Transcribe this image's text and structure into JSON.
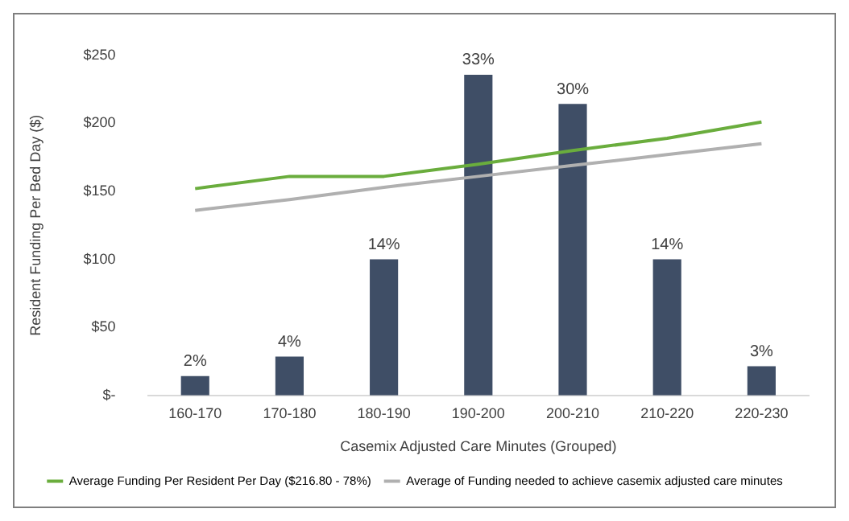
{
  "chart_data": {
    "type": "bar",
    "xlabel": "Casemix Adjusted Care Minutes (Grouped)",
    "ylabel": "Resident Funding Per Bed Day ($)",
    "categories": [
      "160-170",
      "170-180",
      "180-190",
      "190-200",
      "200-210",
      "210-220",
      "220-230"
    ],
    "series": [
      {
        "color": "#3f4e66",
        "axis": "y2",
        "values": [
          2,
          4,
          14,
          33,
          30,
          14,
          3
        ],
        "value_labels": [
          "2%",
          "4%",
          "14%",
          "33%",
          "30%",
          "14%",
          "3%"
        ]
      },
      {
        "type": "line",
        "name": "Average Funding Per Resident Per Day ($216.80 - 78%)",
        "color": "#6aad3d",
        "values": [
          152,
          161,
          161,
          170,
          180,
          189,
          201
        ]
      },
      {
        "type": "line",
        "name": "Average of Funding needed to achieve casemix adjusted care minutes",
        "color": "#b0b0b0",
        "values": [
          136,
          144,
          153,
          161,
          169,
          177,
          185
        ]
      }
    ],
    "ylim": [
      0,
      250
    ],
    "yticks": [
      {
        "value": 0,
        "label": "$-"
      },
      {
        "value": 50,
        "label": "$50"
      },
      {
        "value": 100,
        "label": "$100"
      },
      {
        "value": 150,
        "label": "$150"
      },
      {
        "value": 200,
        "label": "$200"
      },
      {
        "value": 250,
        "label": "$250"
      }
    ],
    "grid": false,
    "legend": "bottom",
    "marker": "none",
    "line_style": "solid"
  }
}
